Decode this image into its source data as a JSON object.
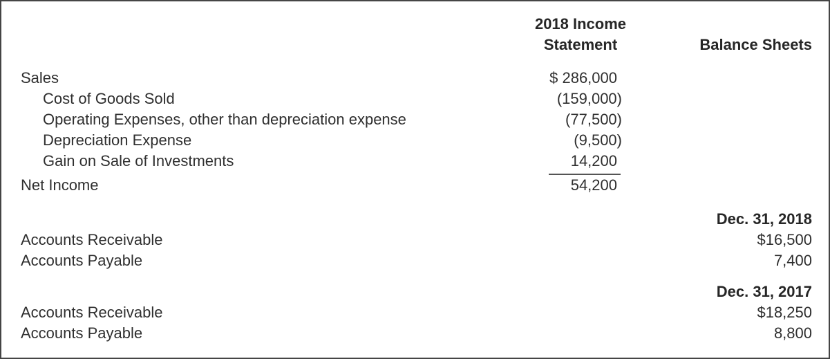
{
  "table": {
    "headers": {
      "income_statement": "2018 Income Statement",
      "balance_sheets": "Balance Sheets"
    },
    "income_statement_rows": [
      {
        "label": "Sales",
        "value": "$ 286,000"
      },
      {
        "label": "Cost of Goods Sold",
        "value": "(159,000)"
      },
      {
        "label": "Operating Expenses, other than depreciation expense",
        "value": "(77,500)"
      },
      {
        "label": "Depreciation Expense",
        "value": "(9,500)"
      },
      {
        "label": "Gain on Sale of Investments",
        "value": "14,200"
      },
      {
        "label": "Net Income",
        "value": "54,200"
      }
    ],
    "balance_sheet_sections": [
      {
        "date_header": "Dec. 31, 2018",
        "rows": [
          {
            "label": "Accounts Receivable",
            "value": "$16,500"
          },
          {
            "label": "Accounts Payable",
            "value": "7,400"
          }
        ]
      },
      {
        "date_header": "Dec. 31, 2017",
        "rows": [
          {
            "label": "Accounts Receivable",
            "value": "$18,250"
          },
          {
            "label": "Accounts Payable",
            "value": "8,800"
          }
        ]
      }
    ],
    "colors": {
      "text": "#2f2f2f",
      "header_text": "#262626",
      "border": "#454545",
      "subtotal_rule": "#555555"
    }
  }
}
